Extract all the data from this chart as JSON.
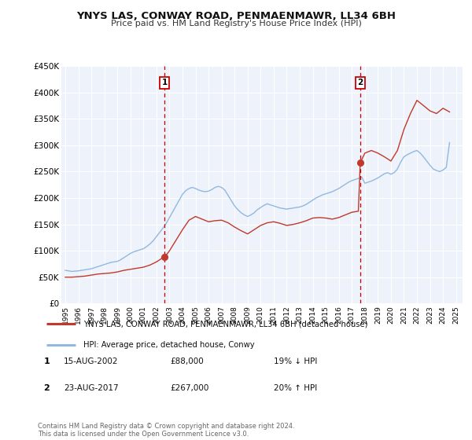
{
  "title": "YNYS LAS, CONWAY ROAD, PENMAENMAWR, LL34 6BH",
  "subtitle": "Price paid vs. HM Land Registry's House Price Index (HPI)",
  "ylim": [
    0,
    450000
  ],
  "yticks": [
    0,
    50000,
    100000,
    150000,
    200000,
    250000,
    300000,
    350000,
    400000,
    450000
  ],
  "ytick_labels": [
    "£0",
    "£50K",
    "£100K",
    "£150K",
    "£200K",
    "£250K",
    "£300K",
    "£350K",
    "£400K",
    "£450K"
  ],
  "xlim_start": 1994.7,
  "xlim_end": 2025.5,
  "xticks": [
    1995,
    1996,
    1997,
    1998,
    1999,
    2000,
    2001,
    2002,
    2003,
    2004,
    2005,
    2006,
    2007,
    2008,
    2009,
    2010,
    2011,
    2012,
    2013,
    2014,
    2015,
    2016,
    2017,
    2018,
    2019,
    2020,
    2021,
    2022,
    2023,
    2024,
    2025
  ],
  "background_color": "#ffffff",
  "plot_bg_color": "#eef2fa",
  "grid_color": "#ffffff",
  "hpi_line_color": "#91b8e0",
  "price_line_color": "#c0392b",
  "sale1_x": 2002.625,
  "sale1_y": 88000,
  "sale1_label": "1",
  "sale1_date": "15-AUG-2002",
  "sale1_price": "£88,000",
  "sale1_hpi": "19% ↓ HPI",
  "sale2_x": 2017.645,
  "sale2_y": 267000,
  "sale2_label": "2",
  "sale2_date": "23-AUG-2017",
  "sale2_price": "£267,000",
  "sale2_hpi": "20% ↑ HPI",
  "vline_color": "#cc0000",
  "legend_label_red": "YNYS LAS, CONWAY ROAD, PENMAENMAWR, LL34 6BH (detached house)",
  "legend_label_blue": "HPI: Average price, detached house, Conwy",
  "footer_text": "Contains HM Land Registry data © Crown copyright and database right 2024.\nThis data is licensed under the Open Government Licence v3.0.",
  "hpi_data_x": [
    1995.0,
    1995.25,
    1995.5,
    1995.75,
    1996.0,
    1996.25,
    1996.5,
    1996.75,
    1997.0,
    1997.25,
    1997.5,
    1997.75,
    1998.0,
    1998.25,
    1998.5,
    1998.75,
    1999.0,
    1999.25,
    1999.5,
    1999.75,
    2000.0,
    2000.25,
    2000.5,
    2000.75,
    2001.0,
    2001.25,
    2001.5,
    2001.75,
    2002.0,
    2002.25,
    2002.5,
    2002.75,
    2003.0,
    2003.25,
    2003.5,
    2003.75,
    2004.0,
    2004.25,
    2004.5,
    2004.75,
    2005.0,
    2005.25,
    2005.5,
    2005.75,
    2006.0,
    2006.25,
    2006.5,
    2006.75,
    2007.0,
    2007.25,
    2007.5,
    2007.75,
    2008.0,
    2008.25,
    2008.5,
    2008.75,
    2009.0,
    2009.25,
    2009.5,
    2009.75,
    2010.0,
    2010.25,
    2010.5,
    2010.75,
    2011.0,
    2011.25,
    2011.5,
    2011.75,
    2012.0,
    2012.25,
    2012.5,
    2012.75,
    2013.0,
    2013.25,
    2013.5,
    2013.75,
    2014.0,
    2014.25,
    2014.5,
    2014.75,
    2015.0,
    2015.25,
    2015.5,
    2015.75,
    2016.0,
    2016.25,
    2016.5,
    2016.75,
    2017.0,
    2017.25,
    2017.5,
    2017.75,
    2018.0,
    2018.25,
    2018.5,
    2018.75,
    2019.0,
    2019.25,
    2019.5,
    2019.75,
    2020.0,
    2020.25,
    2020.5,
    2020.75,
    2021.0,
    2021.25,
    2021.5,
    2021.75,
    2022.0,
    2022.25,
    2022.5,
    2022.75,
    2023.0,
    2023.25,
    2023.5,
    2023.75,
    2024.0,
    2024.25,
    2024.5
  ],
  "hpi_data_y": [
    63000,
    62000,
    61000,
    61500,
    62000,
    63000,
    64000,
    65000,
    66000,
    68000,
    70000,
    72000,
    74000,
    76000,
    78000,
    79000,
    80000,
    83000,
    87000,
    91000,
    95000,
    98000,
    100000,
    102000,
    104000,
    108000,
    113000,
    119000,
    127000,
    135000,
    143000,
    152000,
    163000,
    174000,
    185000,
    196000,
    207000,
    214000,
    218000,
    220000,
    218000,
    215000,
    213000,
    212000,
    213000,
    216000,
    220000,
    222000,
    220000,
    215000,
    205000,
    195000,
    185000,
    178000,
    172000,
    168000,
    165000,
    168000,
    172000,
    178000,
    182000,
    186000,
    189000,
    187000,
    185000,
    183000,
    181000,
    180000,
    179000,
    180000,
    181000,
    182000,
    183000,
    185000,
    188000,
    192000,
    196000,
    200000,
    203000,
    206000,
    208000,
    210000,
    212000,
    215000,
    218000,
    222000,
    226000,
    230000,
    233000,
    235000,
    237000,
    240000,
    228000,
    230000,
    232000,
    235000,
    238000,
    242000,
    246000,
    248000,
    245000,
    248000,
    255000,
    268000,
    278000,
    282000,
    285000,
    288000,
    290000,
    285000,
    278000,
    270000,
    262000,
    255000,
    252000,
    250000,
    253000,
    258000,
    305000
  ],
  "price_data_x": [
    1995.0,
    1995.5,
    1996.0,
    1996.5,
    1997.0,
    1997.5,
    1998.0,
    1998.5,
    1999.0,
    1999.5,
    2000.0,
    2000.5,
    2001.0,
    2001.5,
    2002.0,
    2002.5,
    2002.625,
    2003.0,
    2003.5,
    2004.0,
    2004.5,
    2005.0,
    2005.5,
    2006.0,
    2006.5,
    2007.0,
    2007.5,
    2008.0,
    2008.5,
    2009.0,
    2009.5,
    2010.0,
    2010.5,
    2011.0,
    2011.5,
    2012.0,
    2012.5,
    2013.0,
    2013.5,
    2014.0,
    2014.5,
    2015.0,
    2015.5,
    2016.0,
    2016.5,
    2017.0,
    2017.5,
    2017.645,
    2018.0,
    2018.5,
    2019.0,
    2019.5,
    2020.0,
    2020.5,
    2021.0,
    2021.5,
    2022.0,
    2022.5,
    2023.0,
    2023.5,
    2024.0,
    2024.5
  ],
  "price_data_y": [
    50000,
    50000,
    51000,
    52000,
    54000,
    56000,
    57000,
    58000,
    60000,
    63000,
    65000,
    67000,
    69000,
    73000,
    79000,
    87000,
    88000,
    100000,
    120000,
    140000,
    158000,
    165000,
    160000,
    155000,
    157000,
    158000,
    153000,
    145000,
    138000,
    132000,
    140000,
    148000,
    153000,
    155000,
    152000,
    148000,
    150000,
    153000,
    157000,
    162000,
    163000,
    162000,
    160000,
    163000,
    168000,
    173000,
    175000,
    267000,
    285000,
    290000,
    285000,
    278000,
    270000,
    290000,
    330000,
    360000,
    385000,
    375000,
    365000,
    360000,
    370000,
    363000
  ]
}
